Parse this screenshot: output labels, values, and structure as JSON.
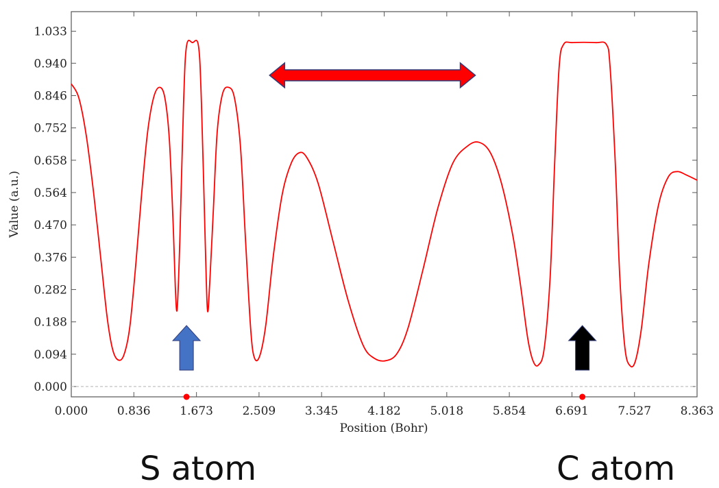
{
  "chart_data": {
    "type": "line",
    "xlabel": "Position (Bohr)",
    "ylabel": "Value (a.u.)",
    "xlim": [
      0.0,
      8.363
    ],
    "ylim": [
      -0.03,
      1.09
    ],
    "x_ticks": [
      "0.000",
      "0.836",
      "1.673",
      "2.509",
      "3.345",
      "4.182",
      "5.018",
      "5.854",
      "6.691",
      "7.527",
      "8.363"
    ],
    "y_ticks": [
      "0.000",
      "0.094",
      "0.188",
      "0.282",
      "0.376",
      "0.470",
      "0.564",
      "0.658",
      "0.752",
      "0.846",
      "0.940",
      "1.033"
    ],
    "reference_line_y": 0.0,
    "series": [
      {
        "color": "#ff0000",
        "points": [
          [
            0.0,
            0.88
          ],
          [
            0.1,
            0.84
          ],
          [
            0.2,
            0.73
          ],
          [
            0.3,
            0.56
          ],
          [
            0.4,
            0.36
          ],
          [
            0.48,
            0.2
          ],
          [
            0.55,
            0.11
          ],
          [
            0.62,
            0.078
          ],
          [
            0.7,
            0.09
          ],
          [
            0.78,
            0.17
          ],
          [
            0.86,
            0.35
          ],
          [
            0.94,
            0.56
          ],
          [
            1.02,
            0.74
          ],
          [
            1.1,
            0.84
          ],
          [
            1.18,
            0.87
          ],
          [
            1.25,
            0.84
          ],
          [
            1.31,
            0.72
          ],
          [
            1.36,
            0.48
          ],
          [
            1.39,
            0.29
          ],
          [
            1.415,
            0.225
          ],
          [
            1.45,
            0.42
          ],
          [
            1.5,
            0.82
          ],
          [
            1.54,
            0.99
          ],
          [
            1.62,
            1.0
          ],
          [
            1.7,
            0.99
          ],
          [
            1.74,
            0.82
          ],
          [
            1.79,
            0.42
          ],
          [
            1.82,
            0.222
          ],
          [
            1.85,
            0.3
          ],
          [
            1.9,
            0.52
          ],
          [
            1.95,
            0.74
          ],
          [
            2.02,
            0.85
          ],
          [
            2.1,
            0.87
          ],
          [
            2.18,
            0.84
          ],
          [
            2.26,
            0.7
          ],
          [
            2.33,
            0.42
          ],
          [
            2.4,
            0.16
          ],
          [
            2.45,
            0.082
          ],
          [
            2.52,
            0.09
          ],
          [
            2.6,
            0.18
          ],
          [
            2.7,
            0.38
          ],
          [
            2.82,
            0.56
          ],
          [
            2.94,
            0.65
          ],
          [
            3.05,
            0.68
          ],
          [
            3.15,
            0.665
          ],
          [
            3.3,
            0.59
          ],
          [
            3.5,
            0.42
          ],
          [
            3.7,
            0.25
          ],
          [
            3.9,
            0.12
          ],
          [
            4.05,
            0.082
          ],
          [
            4.2,
            0.075
          ],
          [
            4.35,
            0.095
          ],
          [
            4.5,
            0.17
          ],
          [
            4.7,
            0.34
          ],
          [
            4.9,
            0.52
          ],
          [
            5.1,
            0.65
          ],
          [
            5.3,
            0.7
          ],
          [
            5.45,
            0.71
          ],
          [
            5.6,
            0.68
          ],
          [
            5.75,
            0.59
          ],
          [
            5.9,
            0.44
          ],
          [
            6.0,
            0.3
          ],
          [
            6.1,
            0.14
          ],
          [
            6.17,
            0.075
          ],
          [
            6.24,
            0.062
          ],
          [
            6.32,
            0.11
          ],
          [
            6.4,
            0.32
          ],
          [
            6.46,
            0.65
          ],
          [
            6.52,
            0.93
          ],
          [
            6.58,
            0.995
          ],
          [
            6.7,
            1.0
          ],
          [
            7.0,
            1.0
          ],
          [
            7.15,
            0.995
          ],
          [
            7.2,
            0.93
          ],
          [
            7.27,
            0.65
          ],
          [
            7.33,
            0.32
          ],
          [
            7.4,
            0.11
          ],
          [
            7.47,
            0.06
          ],
          [
            7.54,
            0.075
          ],
          [
            7.62,
            0.17
          ],
          [
            7.72,
            0.36
          ],
          [
            7.85,
            0.53
          ],
          [
            7.98,
            0.61
          ],
          [
            8.1,
            0.625
          ],
          [
            8.22,
            0.615
          ],
          [
            8.363,
            0.6
          ]
        ]
      }
    ],
    "atom_markers_x": [
      1.54,
      6.83
    ],
    "annotations": {
      "double_arrow": {
        "from_x": 2.65,
        "to_x": 5.4,
        "y": 0.905,
        "color": "#ff0000"
      },
      "up_arrows": [
        {
          "x": 1.54,
          "color": "#4472c4"
        },
        {
          "x": 6.83,
          "color": "#000000"
        }
      ]
    }
  },
  "atom_labels": {
    "s_atom": "S atom",
    "c_atom": "C atom"
  }
}
